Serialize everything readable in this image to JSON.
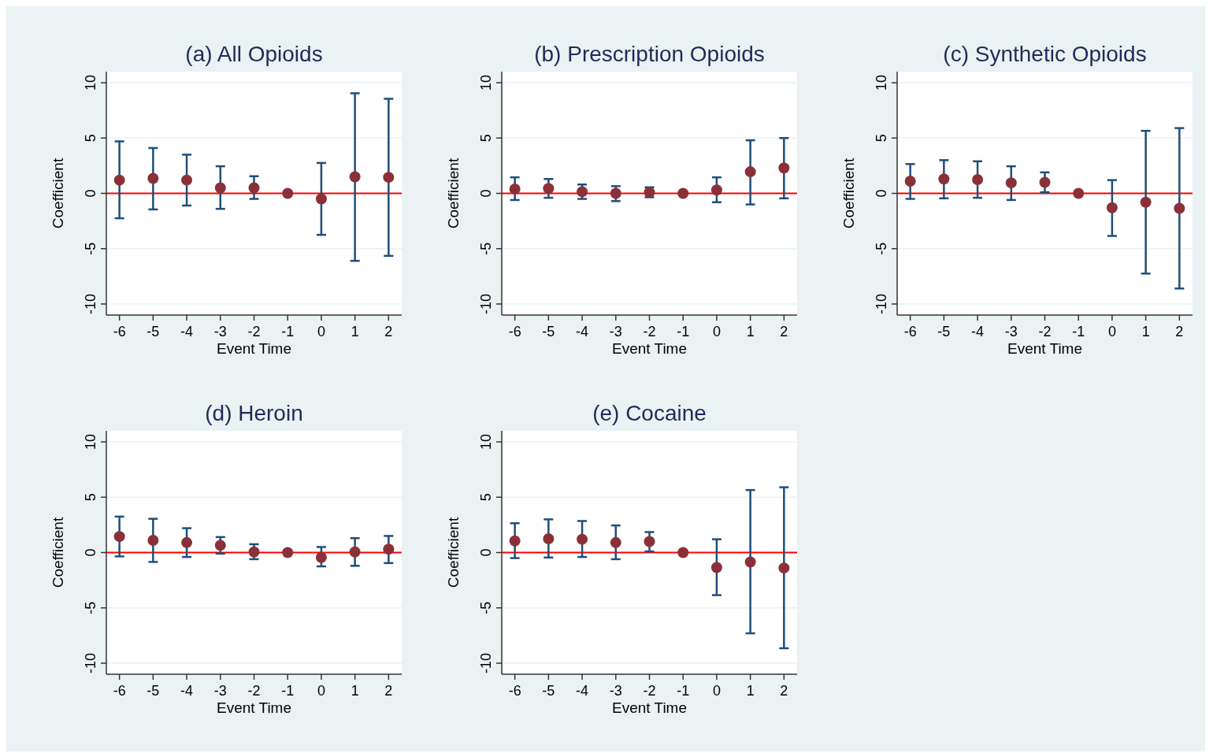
{
  "chart_data": [
    {
      "type": "scatter",
      "title": "(a) All Opioids",
      "xlabel": "Event Time",
      "ylabel": "Coefficient",
      "categories": [
        "-6",
        "-5",
        "-4",
        "-3",
        "-2",
        "-1",
        "0",
        "1",
        "2"
      ],
      "ylim": [
        -11,
        11
      ],
      "yticks": [
        -10,
        -5,
        0,
        5,
        10
      ],
      "grid": "y",
      "marker": "circle",
      "ref_lines": [
        {
          "axis": "y",
          "value": 0,
          "color": "#ff0000"
        }
      ],
      "series": [
        {
          "color": "#8b3038",
          "values": [
            1.2,
            1.35,
            1.2,
            0.5,
            0.5,
            0,
            -0.5,
            1.5,
            1.45
          ],
          "errors": [
            [
              -2.25,
              4.7
            ],
            [
              -1.45,
              4.1
            ],
            [
              -1.1,
              3.5
            ],
            [
              -1.4,
              2.45
            ],
            [
              -0.5,
              1.55
            ],
            null,
            [
              -3.75,
              2.75
            ],
            [
              -6.1,
              9.05
            ],
            [
              -5.65,
              8.55
            ]
          ]
        }
      ]
    },
    {
      "type": "scatter",
      "title": "(b) Prescription Opioids",
      "xlabel": "Event Time",
      "ylabel": "Coefficient",
      "categories": [
        "-6",
        "-5",
        "-4",
        "-3",
        "-2",
        "-1",
        "0",
        "1",
        "2"
      ],
      "ylim": [
        -11,
        11
      ],
      "yticks": [
        -10,
        -5,
        0,
        5,
        10
      ],
      "grid": "y",
      "marker": "circle",
      "ref_lines": [
        {
          "axis": "y",
          "value": 0,
          "color": "#ff0000"
        }
      ],
      "series": [
        {
          "color": "#8b3038",
          "values": [
            0.4,
            0.45,
            0.15,
            0,
            0.1,
            0,
            0.3,
            1.95,
            2.3
          ],
          "errors": [
            [
              -0.6,
              1.45
            ],
            [
              -0.4,
              1.3
            ],
            [
              -0.5,
              0.8
            ],
            [
              -0.7,
              0.65
            ],
            [
              -0.35,
              0.55
            ],
            null,
            [
              -0.8,
              1.45
            ],
            [
              -1,
              4.8
            ],
            [
              -0.45,
              5
            ]
          ]
        }
      ]
    },
    {
      "type": "scatter",
      "title": "(c) Synthetic Opioids",
      "xlabel": "Event Time",
      "ylabel": "Coefficient",
      "categories": [
        "-6",
        "-5",
        "-4",
        "-3",
        "-2",
        "-1",
        "0",
        "1",
        "2"
      ],
      "ylim": [
        -11,
        11
      ],
      "yticks": [
        -10,
        -5,
        0,
        5,
        10
      ],
      "grid": "y",
      "marker": "circle",
      "ref_lines": [
        {
          "axis": "y",
          "value": 0,
          "color": "#ff0000"
        }
      ],
      "series": [
        {
          "color": "#8b3038",
          "values": [
            1.1,
            1.3,
            1.25,
            0.95,
            1,
            0,
            -1.3,
            -0.8,
            -1.35
          ],
          "errors": [
            [
              -0.5,
              2.65
            ],
            [
              -0.45,
              3
            ],
            [
              -0.4,
              2.9
            ],
            [
              -0.6,
              2.45
            ],
            [
              0.1,
              1.9
            ],
            null,
            [
              -3.85,
              1.2
            ],
            [
              -7.25,
              5.65
            ],
            [
              -8.6,
              5.9
            ]
          ]
        }
      ]
    },
    {
      "type": "scatter",
      "title": "(d) Heroin",
      "xlabel": "Event Time",
      "ylabel": "Coefficient",
      "categories": [
        "-6",
        "-5",
        "-4",
        "-3",
        "-2",
        "-1",
        "0",
        "1",
        "2"
      ],
      "ylim": [
        -11,
        11
      ],
      "yticks": [
        -10,
        -5,
        0,
        5,
        10
      ],
      "grid": "y",
      "marker": "circle",
      "ref_lines": [
        {
          "axis": "y",
          "value": 0,
          "color": "#ff0000"
        }
      ],
      "series": [
        {
          "color": "#8b3038",
          "values": [
            1.45,
            1.1,
            0.9,
            0.65,
            0.05,
            0,
            -0.45,
            0.05,
            0.3
          ],
          "errors": [
            [
              -0.35,
              3.25
            ],
            [
              -0.85,
              3.05
            ],
            [
              -0.4,
              2.2
            ],
            [
              -0.1,
              1.4
            ],
            [
              -0.6,
              0.75
            ],
            null,
            [
              -1.25,
              0.5
            ],
            [
              -1.2,
              1.3
            ],
            [
              -0.95,
              1.5
            ]
          ]
        }
      ]
    },
    {
      "type": "scatter",
      "title": "(e) Cocaine",
      "xlabel": "Event Time",
      "ylabel": "Coefficient",
      "categories": [
        "-6",
        "-5",
        "-4",
        "-3",
        "-2",
        "-1",
        "0",
        "1",
        "2"
      ],
      "ylim": [
        -11,
        11
      ],
      "yticks": [
        -10,
        -5,
        0,
        5,
        10
      ],
      "grid": "y",
      "marker": "circle",
      "ref_lines": [
        {
          "axis": "y",
          "value": 0,
          "color": "#ff0000"
        }
      ],
      "series": [
        {
          "color": "#8b3038",
          "values": [
            1.05,
            1.25,
            1.2,
            0.9,
            1,
            0,
            -1.35,
            -0.85,
            -1.4
          ],
          "errors": [
            [
              -0.5,
              2.65
            ],
            [
              -0.45,
              3
            ],
            [
              -0.4,
              2.85
            ],
            [
              -0.6,
              2.45
            ],
            [
              0.1,
              1.85
            ],
            null,
            [
              -3.85,
              1.2
            ],
            [
              -7.3,
              5.65
            ],
            [
              -8.65,
              5.9
            ]
          ]
        }
      ]
    }
  ]
}
